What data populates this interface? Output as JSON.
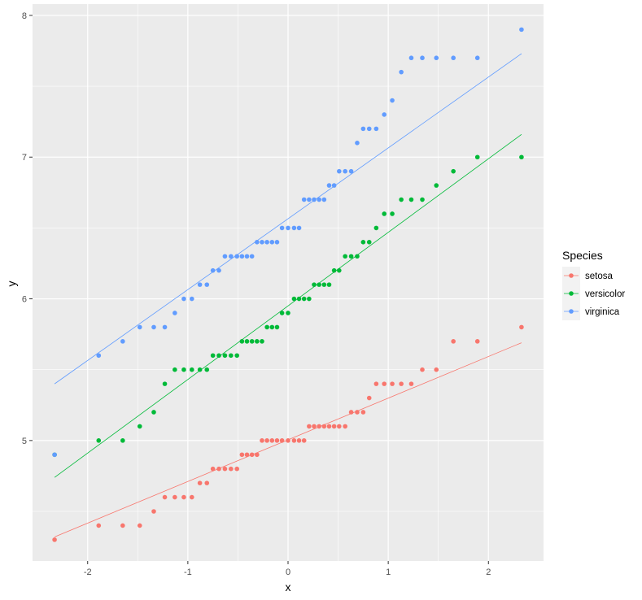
{
  "chart_data": {
    "type": "scatter",
    "xlabel": "x",
    "ylabel": "y",
    "xlim": [
      -2.55,
      2.55
    ],
    "ylim": [
      4.15,
      8.08
    ],
    "xticks": [
      -2,
      -1,
      0,
      1,
      2
    ],
    "xtick_labels": [
      "-2",
      "-1",
      "0",
      "1",
      "2"
    ],
    "yticks": [
      5,
      6,
      7,
      8
    ],
    "ytick_labels": [
      "5",
      "6",
      "7",
      "8"
    ],
    "grid": true,
    "legend": {
      "title": "Species",
      "placement": "right"
    },
    "series": [
      {
        "name": "setosa",
        "color": "#F8766D",
        "points": [
          [
            -2.33,
            4.3
          ],
          [
            -1.89,
            4.4
          ],
          [
            -1.65,
            4.4
          ],
          [
            -1.48,
            4.4
          ],
          [
            -1.34,
            4.5
          ],
          [
            -1.23,
            4.6
          ],
          [
            -1.13,
            4.6
          ],
          [
            -1.04,
            4.6
          ],
          [
            -0.96,
            4.6
          ],
          [
            -0.88,
            4.7
          ],
          [
            -0.81,
            4.7
          ],
          [
            -0.75,
            4.8
          ],
          [
            -0.69,
            4.8
          ],
          [
            -0.63,
            4.8
          ],
          [
            -0.57,
            4.8
          ],
          [
            -0.51,
            4.8
          ],
          [
            -0.46,
            4.9
          ],
          [
            -0.41,
            4.9
          ],
          [
            -0.36,
            4.9
          ],
          [
            -0.31,
            4.9
          ],
          [
            -0.26,
            5.0
          ],
          [
            -0.21,
            5.0
          ],
          [
            -0.16,
            5.0
          ],
          [
            -0.11,
            5.0
          ],
          [
            -0.06,
            5.0
          ],
          [
            0.0,
            5.0
          ],
          [
            0.06,
            5.0
          ],
          [
            0.11,
            5.0
          ],
          [
            0.16,
            5.0
          ],
          [
            0.21,
            5.1
          ],
          [
            0.26,
            5.1
          ],
          [
            0.31,
            5.1
          ],
          [
            0.36,
            5.1
          ],
          [
            0.41,
            5.1
          ],
          [
            0.46,
            5.1
          ],
          [
            0.51,
            5.1
          ],
          [
            0.57,
            5.1
          ],
          [
            0.63,
            5.2
          ],
          [
            0.69,
            5.2
          ],
          [
            0.75,
            5.2
          ],
          [
            0.81,
            5.3
          ],
          [
            0.88,
            5.4
          ],
          [
            0.96,
            5.4
          ],
          [
            1.04,
            5.4
          ],
          [
            1.13,
            5.4
          ],
          [
            1.23,
            5.4
          ],
          [
            1.34,
            5.5
          ],
          [
            1.48,
            5.5
          ],
          [
            1.65,
            5.7
          ],
          [
            1.89,
            5.7
          ],
          [
            2.33,
            5.8
          ]
        ],
        "fit_line": [
          [
            -2.33,
            4.32
          ],
          [
            2.33,
            5.69
          ]
        ]
      },
      {
        "name": "versicolor",
        "color": "#00BA38",
        "points": [
          [
            -2.33,
            4.9
          ],
          [
            -1.89,
            5.0
          ],
          [
            -1.65,
            5.0
          ],
          [
            -1.48,
            5.1
          ],
          [
            -1.34,
            5.2
          ],
          [
            -1.23,
            5.4
          ],
          [
            -1.13,
            5.5
          ],
          [
            -1.04,
            5.5
          ],
          [
            -0.96,
            5.5
          ],
          [
            -0.88,
            5.5
          ],
          [
            -0.81,
            5.5
          ],
          [
            -0.75,
            5.6
          ],
          [
            -0.69,
            5.6
          ],
          [
            -0.63,
            5.6
          ],
          [
            -0.57,
            5.6
          ],
          [
            -0.51,
            5.6
          ],
          [
            -0.46,
            5.7
          ],
          [
            -0.41,
            5.7
          ],
          [
            -0.36,
            5.7
          ],
          [
            -0.31,
            5.7
          ],
          [
            -0.26,
            5.7
          ],
          [
            -0.21,
            5.8
          ],
          [
            -0.16,
            5.8
          ],
          [
            -0.11,
            5.8
          ],
          [
            -0.06,
            5.9
          ],
          [
            0.0,
            5.9
          ],
          [
            0.06,
            6.0
          ],
          [
            0.11,
            6.0
          ],
          [
            0.16,
            6.0
          ],
          [
            0.21,
            6.0
          ],
          [
            0.26,
            6.1
          ],
          [
            0.31,
            6.1
          ],
          [
            0.36,
            6.1
          ],
          [
            0.41,
            6.1
          ],
          [
            0.46,
            6.2
          ],
          [
            0.51,
            6.2
          ],
          [
            0.57,
            6.3
          ],
          [
            0.63,
            6.3
          ],
          [
            0.69,
            6.3
          ],
          [
            0.75,
            6.4
          ],
          [
            0.81,
            6.4
          ],
          [
            0.88,
            6.5
          ],
          [
            0.96,
            6.6
          ],
          [
            1.04,
            6.6
          ],
          [
            1.13,
            6.7
          ],
          [
            1.23,
            6.7
          ],
          [
            1.34,
            6.7
          ],
          [
            1.48,
            6.8
          ],
          [
            1.65,
            6.9
          ],
          [
            1.89,
            7.0
          ],
          [
            2.33,
            7.0
          ]
        ],
        "fit_line": [
          [
            -2.33,
            4.74
          ],
          [
            2.33,
            7.16
          ]
        ]
      },
      {
        "name": "virginica",
        "color": "#619CFF",
        "points": [
          [
            -2.33,
            4.9
          ],
          [
            -1.89,
            5.6
          ],
          [
            -1.65,
            5.7
          ],
          [
            -1.48,
            5.8
          ],
          [
            -1.34,
            5.8
          ],
          [
            -1.23,
            5.8
          ],
          [
            -1.13,
            5.9
          ],
          [
            -1.04,
            6.0
          ],
          [
            -0.96,
            6.0
          ],
          [
            -0.88,
            6.1
          ],
          [
            -0.81,
            6.1
          ],
          [
            -0.75,
            6.2
          ],
          [
            -0.69,
            6.2
          ],
          [
            -0.63,
            6.3
          ],
          [
            -0.57,
            6.3
          ],
          [
            -0.51,
            6.3
          ],
          [
            -0.46,
            6.3
          ],
          [
            -0.41,
            6.3
          ],
          [
            -0.36,
            6.3
          ],
          [
            -0.31,
            6.4
          ],
          [
            -0.26,
            6.4
          ],
          [
            -0.21,
            6.4
          ],
          [
            -0.16,
            6.4
          ],
          [
            -0.11,
            6.4
          ],
          [
            -0.06,
            6.5
          ],
          [
            0.0,
            6.5
          ],
          [
            0.06,
            6.5
          ],
          [
            0.11,
            6.5
          ],
          [
            0.16,
            6.7
          ],
          [
            0.21,
            6.7
          ],
          [
            0.26,
            6.7
          ],
          [
            0.31,
            6.7
          ],
          [
            0.36,
            6.7
          ],
          [
            0.41,
            6.8
          ],
          [
            0.46,
            6.8
          ],
          [
            0.51,
            6.9
          ],
          [
            0.57,
            6.9
          ],
          [
            0.63,
            6.9
          ],
          [
            0.69,
            7.1
          ],
          [
            0.75,
            7.2
          ],
          [
            0.81,
            7.2
          ],
          [
            0.88,
            7.2
          ],
          [
            0.96,
            7.3
          ],
          [
            1.04,
            7.4
          ],
          [
            1.13,
            7.6
          ],
          [
            1.23,
            7.7
          ],
          [
            1.34,
            7.7
          ],
          [
            1.48,
            7.7
          ],
          [
            1.65,
            7.7
          ],
          [
            1.89,
            7.7
          ],
          [
            2.33,
            7.9
          ]
        ],
        "fit_line": [
          [
            -2.33,
            5.4
          ],
          [
            2.33,
            7.73
          ]
        ]
      }
    ]
  }
}
